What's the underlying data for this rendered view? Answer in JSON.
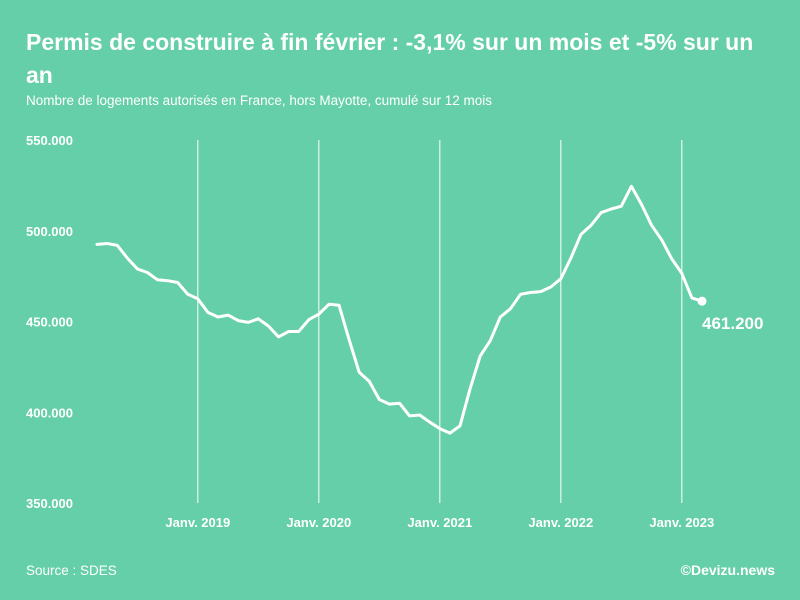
{
  "header": {
    "title": "Permis de construire à fin février : -3,1% sur un mois et -5% sur un an",
    "subtitle": "Nombre de logements autorisés en France, hors Mayotte, cumulé sur 12 mois"
  },
  "footer": {
    "source": "Source : SDES",
    "credit": "©Devizu.news"
  },
  "colors": {
    "background": "#64cfa9",
    "line": "#ffffff"
  },
  "chart_data": {
    "type": "line",
    "title": "Permis de construire à fin février : -3,1% sur un mois et -5% sur un an",
    "subtitle": "Nombre de logements autorisés en France, hors Mayotte, cumulé sur 12 mois",
    "xlabel": "",
    "ylabel": "",
    "ylim": [
      350000,
      550000
    ],
    "y_ticks": [
      550000,
      500000,
      450000,
      400000,
      350000
    ],
    "y_tick_labels": [
      "550.000",
      "500.000",
      "450.000",
      "400.000",
      "350.000"
    ],
    "x_ticks": [
      10,
      22,
      34,
      46,
      58
    ],
    "x_tick_labels": [
      "Janv. 2019",
      "Janv. 2020",
      "Janv. 2021",
      "Janv. 2022",
      "Janv. 2023"
    ],
    "x_unit": "months since Mar 2018",
    "grid": "vertical",
    "end_label": "461.200",
    "series": [
      {
        "name": "Logements autorisés (cumul 12 mois)",
        "x": [
          0,
          1,
          2,
          3,
          4,
          5,
          6,
          7,
          8,
          9,
          10,
          11,
          12,
          13,
          14,
          15,
          16,
          17,
          18,
          19,
          20,
          21,
          22,
          23,
          24,
          25,
          26,
          27,
          28,
          29,
          30,
          31,
          32,
          33,
          34,
          35,
          36,
          37,
          38,
          39,
          40,
          41,
          42,
          43,
          44,
          45,
          46,
          47,
          48,
          49,
          50,
          51,
          52,
          53,
          54,
          55,
          56,
          57,
          58,
          59,
          60
        ],
        "values": [
          492500,
          493000,
          492000,
          485000,
          479000,
          477000,
          473000,
          472500,
          471500,
          465000,
          462500,
          455000,
          452500,
          453500,
          450500,
          449500,
          451500,
          447500,
          441500,
          444500,
          444500,
          451000,
          454000,
          459500,
          459000,
          440000,
          422000,
          417000,
          407000,
          404500,
          405000,
          398000,
          398500,
          394500,
          391000,
          388500,
          392500,
          413000,
          431000,
          439500,
          452500,
          457000,
          465000,
          466000,
          466500,
          469000,
          473500,
          485000,
          498000,
          503000,
          510000,
          512000,
          513500,
          524500,
          514500,
          503000,
          495000,
          484500,
          476500,
          463000,
          461200
        ]
      }
    ]
  }
}
